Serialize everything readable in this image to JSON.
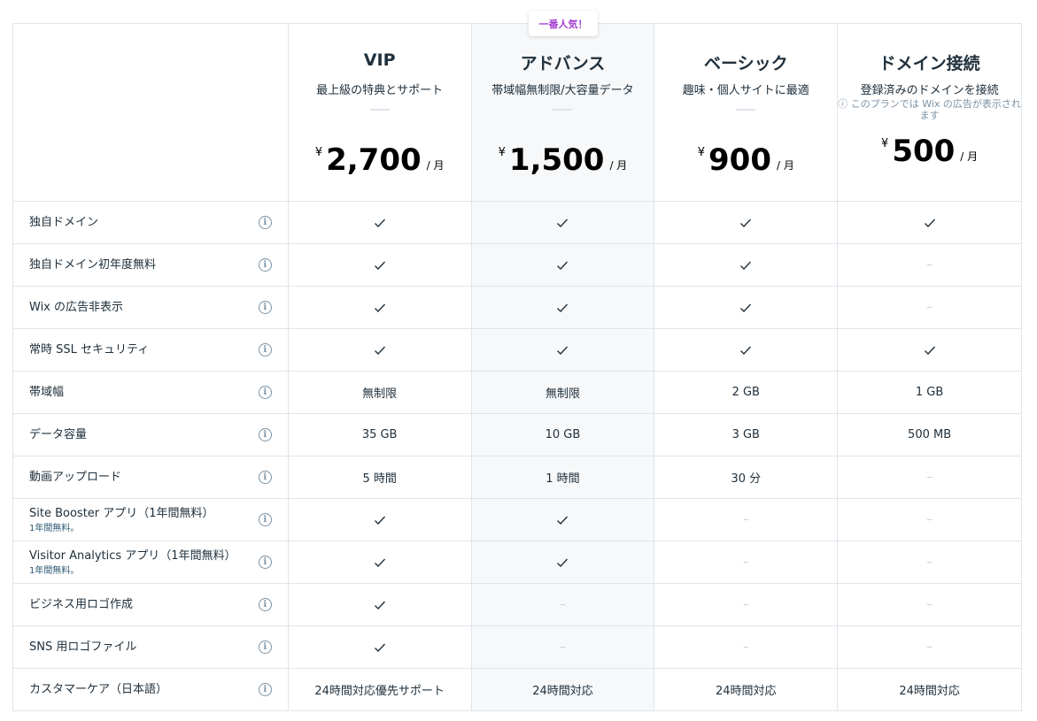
{
  "badge": "一番人気！",
  "plans": [
    {
      "name": "VIP",
      "desc": "最上級の特典とサポート",
      "note": "",
      "currency": "¥",
      "price": "2,700",
      "per": "/ 月"
    },
    {
      "name": "アドバンス",
      "desc": "帯域幅無制限/大容量データ",
      "note": "",
      "currency": "¥",
      "price": "1,500",
      "per": "/ 月"
    },
    {
      "name": "ベーシック",
      "desc": "趣味・個人サイトに最適",
      "note": "",
      "currency": "¥",
      "price": "900",
      "per": "/ 月"
    },
    {
      "name": "ドメイン接続",
      "desc": "登録済みのドメインを接続",
      "note": "ⓘ このプランでは Wix の広告が表示されます",
      "currency": "¥",
      "price": "500",
      "per": "/ 月"
    }
  ],
  "features": [
    {
      "label": "独自ドメイン",
      "sub": "",
      "values": [
        "check",
        "check",
        "check",
        "check"
      ]
    },
    {
      "label": "独自ドメイン初年度無料",
      "sub": "",
      "values": [
        "check",
        "check",
        "check",
        "dash"
      ]
    },
    {
      "label": "Wix の広告非表示",
      "sub": "",
      "values": [
        "check",
        "check",
        "check",
        "dash"
      ]
    },
    {
      "label": "常時 SSL セキュリティ",
      "sub": "",
      "values": [
        "check",
        "check",
        "check",
        "check"
      ]
    },
    {
      "label": "帯域幅",
      "sub": "",
      "values": [
        "無制限",
        "無制限",
        "2 GB",
        "1 GB"
      ]
    },
    {
      "label": "データ容量",
      "sub": "",
      "values": [
        "35 GB",
        "10 GB",
        "3 GB",
        "500 MB"
      ]
    },
    {
      "label": "動画アップロード",
      "sub": "",
      "values": [
        "5 時間",
        "1 時間",
        "30 分",
        "dash"
      ]
    },
    {
      "label": "Site Booster アプリ（1年間無料）",
      "sub": "1年間無料。",
      "values": [
        "check",
        "check",
        "dash",
        "dash"
      ]
    },
    {
      "label": "Visitor Analytics アプリ（1年間無料）",
      "sub": "1年間無料。",
      "values": [
        "check",
        "check",
        "dash",
        "dash"
      ]
    },
    {
      "label": "ビジネス用ロゴ作成",
      "sub": "",
      "values": [
        "check",
        "dash",
        "dash",
        "dash"
      ]
    },
    {
      "label": "SNS 用ロゴファイル",
      "sub": "",
      "values": [
        "check",
        "dash",
        "dash",
        "dash"
      ]
    },
    {
      "label": "カスタマーケア（日本語）",
      "sub": "",
      "values": [
        "24時間対応優先サポート",
        "24時間対応",
        "24時間対応",
        "24時間対応"
      ]
    }
  ]
}
